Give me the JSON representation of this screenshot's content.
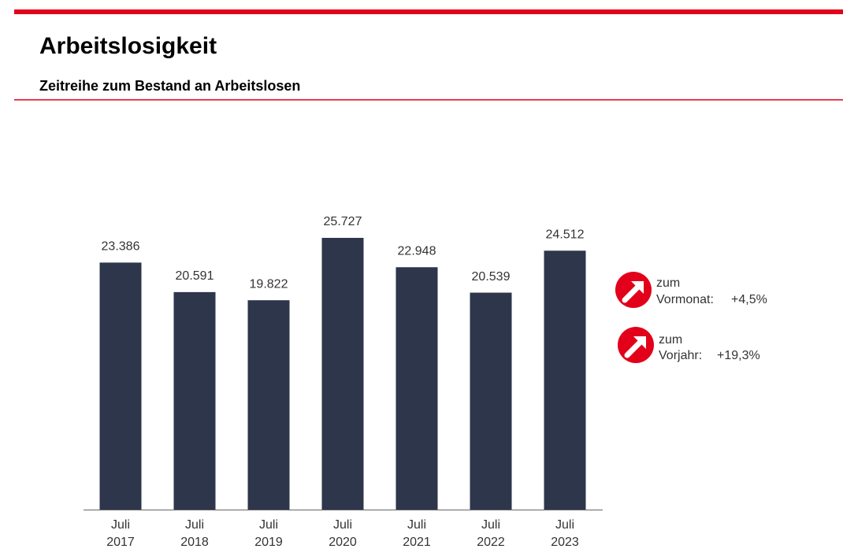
{
  "chart_data": {
    "type": "bar",
    "title": "Arbeitslosigkeit",
    "subtitle": "Zeitreihe zum Bestand an Arbeitslosen",
    "categories": [
      "Juli 2017",
      "Juli 2018",
      "Juli 2019",
      "Juli 2020",
      "Juli 2021",
      "Juli 2022",
      "Juli 2023"
    ],
    "values": [
      23386,
      20591,
      19822,
      25727,
      22948,
      20539,
      24512
    ],
    "value_labels": [
      "23.386",
      "20.591",
      "19.822",
      "25.727",
      "22.948",
      "20.539",
      "24.512"
    ],
    "color": "#2e364b",
    "annotations": [
      {
        "prefix": "zum",
        "label": "Vormonat:",
        "change": "+4,5%"
      },
      {
        "prefix": "zum",
        "label": "Vorjahr:",
        "change": "+19,3%"
      }
    ]
  }
}
